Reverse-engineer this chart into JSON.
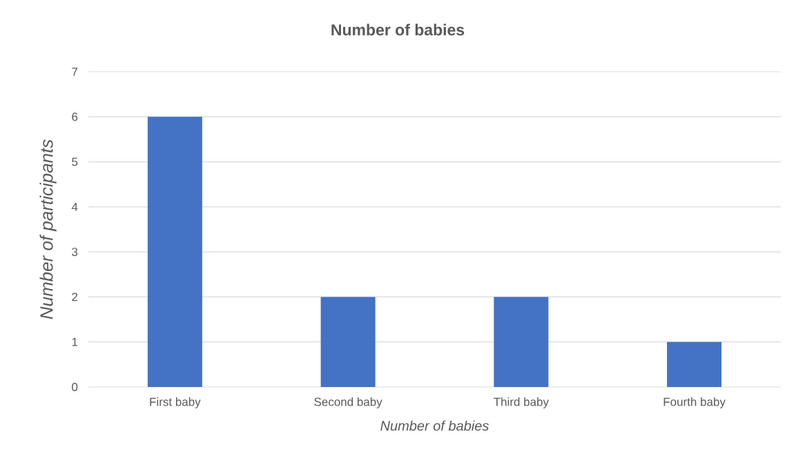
{
  "chart_data": {
    "type": "bar",
    "title": "Number of babies",
    "xlabel": "Number of babies",
    "ylabel": "Number of participants",
    "categories": [
      "First baby",
      "Second baby",
      "Third baby",
      "Fourth baby"
    ],
    "values": [
      6,
      2,
      2,
      1
    ],
    "color": "#4472c4",
    "ylim": [
      0,
      7
    ],
    "yticks": [
      0,
      1,
      2,
      3,
      4,
      5,
      6,
      7
    ],
    "grid": "y"
  }
}
